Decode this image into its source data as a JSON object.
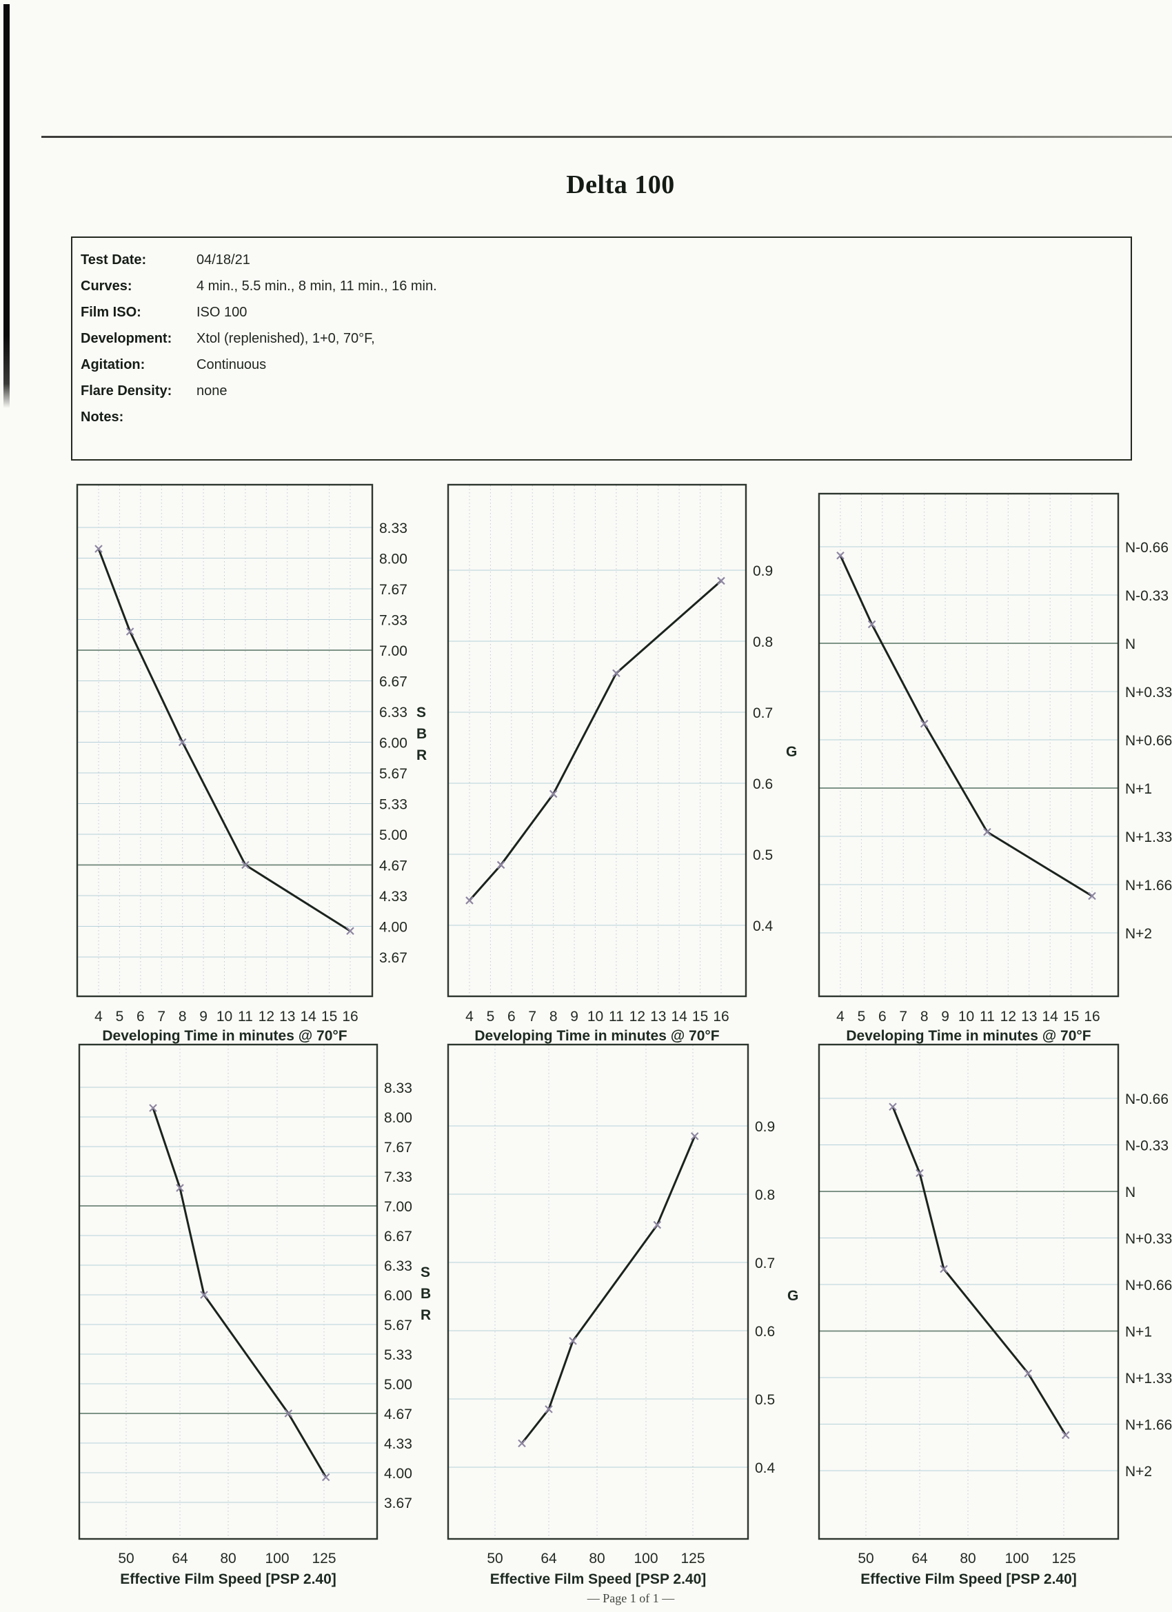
{
  "page": {
    "title": "Delta 100",
    "footer": "— Page 1 of 1 —"
  },
  "info_box": {
    "rows": [
      {
        "label": "Test Date:",
        "value": "04/18/21"
      },
      {
        "label": "Curves:",
        "value": "4 min., 5.5 min., 8 min, 11 min., 16 min."
      },
      {
        "label": "Film ISO:",
        "value": "ISO 100"
      },
      {
        "label": "Development:",
        "value": "Xtol (replenished), 1+0, 70°F,"
      },
      {
        "label": "Agitation:",
        "value": "Continuous"
      },
      {
        "label": "Flare Density:",
        "value": "none"
      },
      {
        "label": "Notes:",
        "value": ""
      }
    ]
  },
  "chart_data": [
    {
      "id": "sbr-vs-dev-time",
      "type": "line",
      "marker": "x",
      "grid": true,
      "xlabel": "Developing Time in minutes @ 70°F",
      "ylabel": "SBR",
      "x_ticks": [
        4,
        5,
        6,
        7,
        8,
        9,
        10,
        11,
        12,
        13,
        14,
        15,
        16
      ],
      "y_tick_labels": [
        "8.33",
        "8.00",
        "7.67",
        "7.33",
        "7.00",
        "6.67",
        "6.33",
        "6.00",
        "5.67",
        "5.33",
        "5.00",
        "4.67",
        "4.33",
        "4.00",
        "3.67"
      ],
      "series": {
        "x": [
          4,
          5.5,
          8,
          11,
          16
        ],
        "y": [
          8.1,
          7.2,
          6.0,
          4.67,
          3.95
        ]
      }
    },
    {
      "id": "g-vs-dev-time",
      "type": "line",
      "marker": "x",
      "grid": true,
      "xlabel": "Developing Time in minutes @ 70°F",
      "ylabel": "G",
      "x_ticks": [
        4,
        5,
        6,
        7,
        8,
        9,
        10,
        11,
        12,
        13,
        14,
        15,
        16
      ],
      "y_tick_labels": [
        "0.9",
        "0.8",
        "0.7",
        "0.6",
        "0.5",
        "0.4"
      ],
      "series": {
        "x": [
          4,
          5.5,
          8,
          11,
          16
        ],
        "y": [
          0.435,
          0.485,
          0.585,
          0.755,
          0.885
        ]
      }
    },
    {
      "id": "n-compensation-vs-dev-time",
      "type": "line",
      "marker": "x",
      "grid": true,
      "xlabel": "Developing Time in minutes @ 70°F",
      "ylabel": "",
      "x_ticks": [
        4,
        5,
        6,
        7,
        8,
        9,
        10,
        11,
        12,
        13,
        14,
        15,
        16
      ],
      "y_tick_labels": [
        "N-0.66",
        "N-0.33",
        "N",
        "N+0.33",
        "N+0.66",
        "N+1",
        "N+1.33",
        "N+1.66",
        "N+2"
      ],
      "y_tick_values": [
        -0.66,
        -0.33,
        0,
        0.33,
        0.66,
        1,
        1.33,
        1.66,
        2
      ],
      "series": {
        "x": [
          4,
          5.5,
          8,
          11,
          16
        ],
        "y": [
          -0.6,
          -0.13,
          0.55,
          1.3,
          1.74
        ]
      }
    },
    {
      "id": "sbr-vs-effective-film-speed",
      "type": "line",
      "marker": "x",
      "grid": true,
      "xlabel": "Effective Film Speed [PSP 2.40]",
      "ylabel": "SBR",
      "x_ticks": [
        50,
        64,
        80,
        100,
        125
      ],
      "y_tick_labels": [
        "8.33",
        "8.00",
        "7.67",
        "7.33",
        "7.00",
        "6.67",
        "6.33",
        "6.00",
        "5.67",
        "5.33",
        "5.00",
        "4.67",
        "4.33",
        "4.00",
        "3.67"
      ],
      "series": {
        "x": [
          57,
          64,
          72,
          106,
          126
        ],
        "y": [
          8.1,
          7.2,
          6.0,
          4.67,
          3.95
        ]
      }
    },
    {
      "id": "g-vs-effective-film-speed",
      "type": "line",
      "marker": "x",
      "grid": true,
      "xlabel": "Effective Film Speed [PSP 2.40]",
      "ylabel": "G",
      "x_ticks": [
        50,
        64,
        80,
        100,
        125
      ],
      "y_tick_labels": [
        "0.9",
        "0.8",
        "0.7",
        "0.6",
        "0.5",
        "0.4"
      ],
      "series": {
        "x": [
          57,
          64,
          72,
          106,
          126
        ],
        "y": [
          0.435,
          0.485,
          0.585,
          0.755,
          0.885
        ]
      }
    },
    {
      "id": "n-compensation-vs-effective-film-speed",
      "type": "line",
      "marker": "x",
      "grid": true,
      "xlabel": "Effective Film Speed [PSP 2.40]",
      "ylabel": "",
      "x_ticks": [
        50,
        64,
        80,
        100,
        125
      ],
      "y_tick_labels": [
        "N-0.66",
        "N-0.33",
        "N",
        "N+0.33",
        "N+0.66",
        "N+1",
        "N+1.33",
        "N+1.66",
        "N+2"
      ],
      "y_tick_values": [
        -0.66,
        -0.33,
        0,
        0.33,
        0.66,
        1,
        1.33,
        1.66,
        2
      ],
      "series": {
        "x": [
          57,
          64,
          72,
          106,
          126
        ],
        "y": [
          -0.6,
          -0.13,
          0.55,
          1.3,
          1.74
        ]
      }
    }
  ],
  "colors": {
    "curve": "#1b231d",
    "marker": "#8e86a1",
    "grid_minor": "#b7d1d9",
    "grid_major": "#6d8577"
  }
}
